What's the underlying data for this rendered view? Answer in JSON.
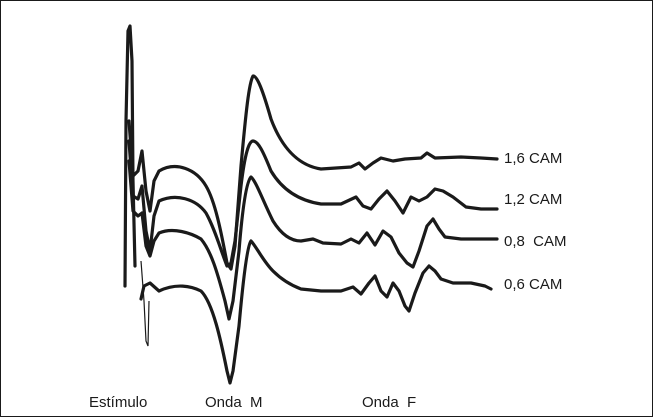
{
  "traces": [
    {
      "label": "1,6 CAM"
    },
    {
      "label": "1,2 CAM"
    },
    {
      "label": "0,8  CAM"
    },
    {
      "label": "0,6 CAM"
    }
  ],
  "axis_labels": {
    "stimulus": "Estímulo",
    "m_wave": "Onda  M",
    "f_wave": "Onda  F"
  },
  "colors": {
    "line": "#1a1a1a",
    "background": "#ffffff"
  }
}
